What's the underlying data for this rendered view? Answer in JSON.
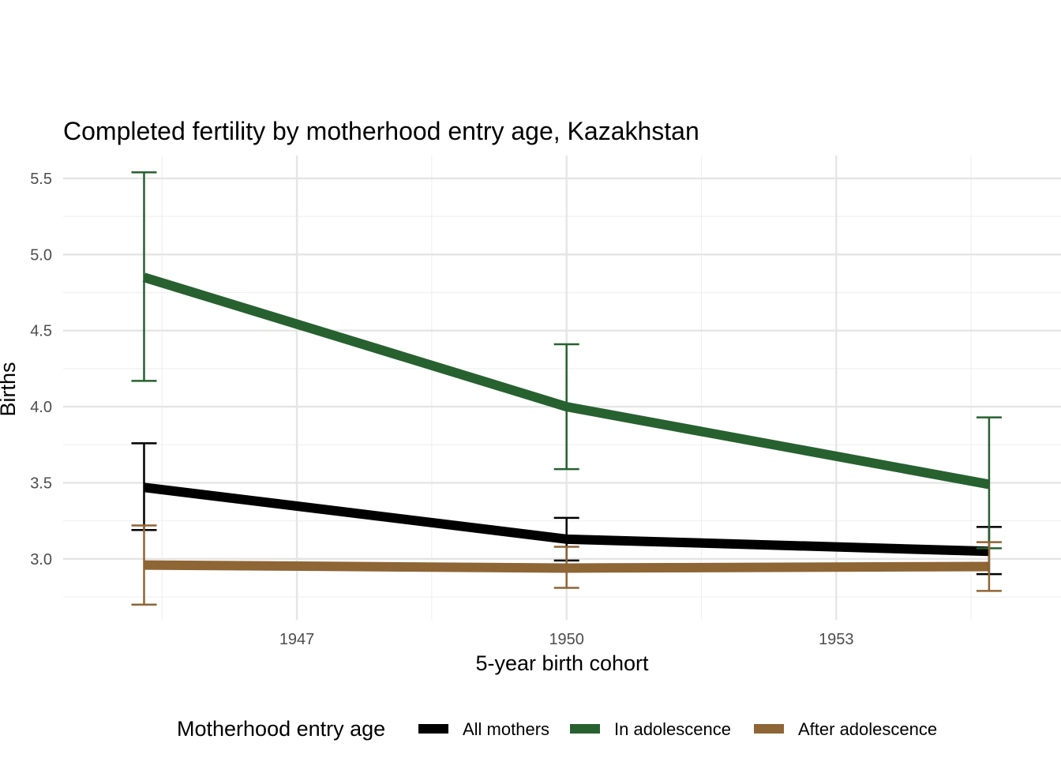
{
  "chart_data": {
    "type": "line",
    "title": "Completed fertility by motherhood entry age,  Kazakhstan",
    "xlabel": "5-year birth cohort",
    "ylabel": "Births",
    "x": [
      1945.3,
      1950.0,
      1954.7
    ],
    "xlim": [
      1944.4,
      1955.5
    ],
    "ylim": [
      2.6,
      5.65
    ],
    "x_ticks": [
      1947,
      1950,
      1953
    ],
    "x_tick_labels": [
      "1947",
      "1950",
      "1953"
    ],
    "y_ticks": [
      3.0,
      3.5,
      4.0,
      4.5,
      5.0,
      5.5
    ],
    "y_tick_labels": [
      "3.0",
      "3.5",
      "4.0",
      "4.5",
      "5.0",
      "5.5"
    ],
    "grid": true,
    "legend_title": "Motherhood entry age",
    "legend_position": "bottom",
    "series": [
      {
        "name": "All mothers",
        "color": "#000000",
        "values": [
          3.47,
          3.13,
          3.05
        ],
        "lower": [
          3.19,
          2.99,
          2.9
        ],
        "upper": [
          3.76,
          3.27,
          3.21
        ]
      },
      {
        "name": "In adolescence",
        "color": "#27612f",
        "values": [
          4.85,
          4.0,
          3.49
        ],
        "lower": [
          4.17,
          3.59,
          3.07
        ],
        "upper": [
          5.54,
          4.41,
          3.93
        ]
      },
      {
        "name": "After adolescence",
        "color": "#8e6535",
        "values": [
          2.96,
          2.94,
          2.95
        ],
        "lower": [
          2.7,
          2.81,
          2.79
        ],
        "upper": [
          3.22,
          3.08,
          3.11
        ]
      }
    ]
  }
}
